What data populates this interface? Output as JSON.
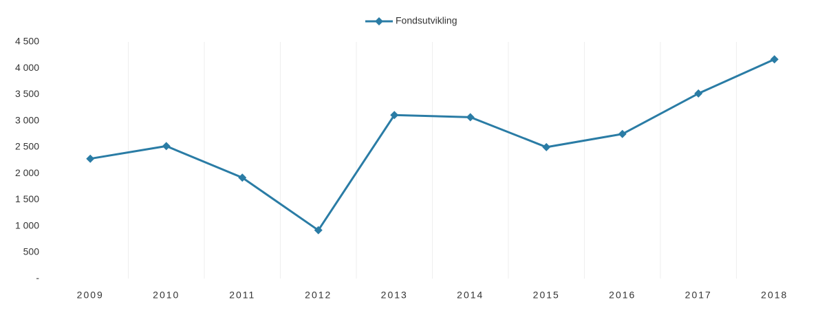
{
  "chart_data": {
    "type": "line",
    "categories": [
      "2009",
      "2010",
      "2011",
      "2012",
      "2013",
      "2014",
      "2015",
      "2016",
      "2017",
      "2018"
    ],
    "series": [
      {
        "name": "Fondsutvikling",
        "color": "#2a7ca5",
        "values": [
          2280,
          2520,
          1920,
          920,
          3110,
          3070,
          2500,
          2750,
          3520,
          4170
        ]
      }
    ],
    "ylim": [
      0,
      4500
    ],
    "yticks": [
      {
        "value": 0,
        "label": "-"
      },
      500,
      {
        "value": 1000,
        "label": "1 000"
      },
      {
        "value": 1500,
        "label": "1 500"
      },
      {
        "value": 2000,
        "label": "2 000"
      },
      {
        "value": 2500,
        "label": "2 500"
      },
      {
        "value": 3000,
        "label": "3 000"
      },
      {
        "value": 3500,
        "label": "3 500"
      },
      {
        "value": 4000,
        "label": "4 000"
      },
      {
        "value": 4500,
        "label": "4 500"
      }
    ],
    "grid": true
  }
}
